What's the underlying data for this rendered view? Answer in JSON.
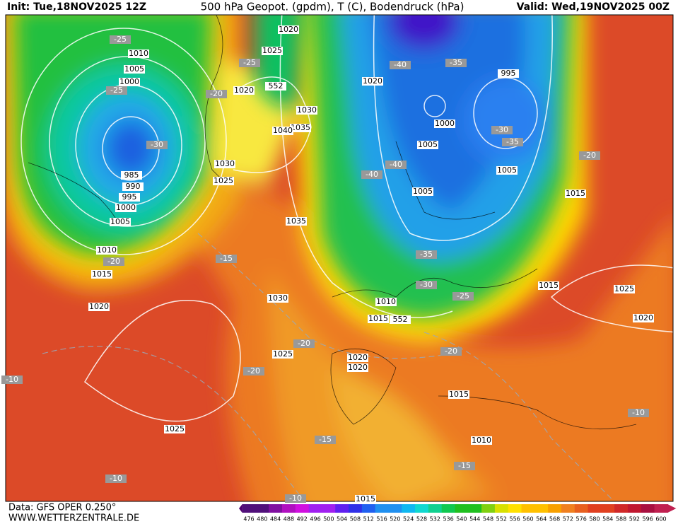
{
  "header": {
    "init": "Init: Tue,18NOV2025 12Z",
    "title": "500 hPa Geopot. (gpdm), T (C), Bodendruck (hPa)",
    "valid": "Valid: Wed,19NOV2025 00Z"
  },
  "footer": {
    "source": "Data: GFS OPER 0.250°",
    "site": "WWW.WETTERZENTRALE.DE"
  },
  "map": {
    "pressure_labels": [
      1020,
      1025,
      1010,
      1005,
      1000,
      985,
      990,
      995,
      1000,
      1005,
      1010,
      1015,
      1020,
      1020,
      1030,
      1035,
      1040,
      1030,
      1025,
      1035,
      1030,
      1025,
      1020,
      1020,
      1015,
      1010,
      1020,
      1000,
      1005,
      1005,
      1005,
      995,
      1015,
      1015,
      1025,
      1020,
      1015,
      1010,
      1025,
      1015
    ],
    "temperature_labels": [
      -25,
      -25,
      -30,
      -25,
      -20,
      -40,
      -35,
      -30,
      -35,
      -40,
      -40,
      -20,
      -35,
      -30,
      -25,
      -20,
      -15,
      -20,
      -20,
      -20,
      -15,
      -15,
      -10,
      -10,
      -10,
      -10
    ],
    "geopotential_labels": [
      552,
      552
    ]
  },
  "legend": {
    "values": [
      476,
      480,
      484,
      488,
      492,
      496,
      500,
      504,
      508,
      512,
      516,
      520,
      524,
      528,
      532,
      536,
      540,
      544,
      548,
      552,
      556,
      560,
      564,
      568,
      572,
      576,
      580,
      584,
      588,
      592,
      596,
      600
    ]
  }
}
